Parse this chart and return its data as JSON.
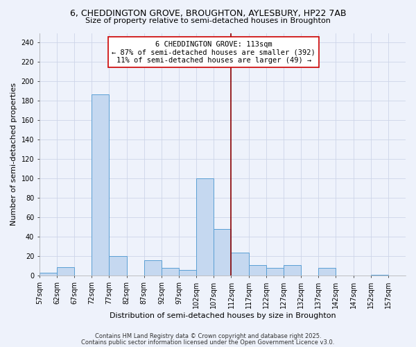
{
  "title": "6, CHEDDINGTON GROVE, BROUGHTON, AYLESBURY, HP22 7AB",
  "subtitle": "Size of property relative to semi-detached houses in Broughton",
  "xlabel": "Distribution of semi-detached houses by size in Broughton",
  "ylabel": "Number of semi-detached properties",
  "bin_edges": [
    57,
    62,
    67,
    72,
    77,
    82,
    87,
    92,
    97,
    102,
    107,
    112,
    117,
    122,
    127,
    132,
    137,
    142,
    147,
    152,
    157
  ],
  "bin_labels": [
    "57sqm",
    "62sqm",
    "67sqm",
    "72sqm",
    "77sqm",
    "82sqm",
    "87sqm",
    "92sqm",
    "97sqm",
    "102sqm",
    "107sqm",
    "112sqm",
    "117sqm",
    "122sqm",
    "127sqm",
    "132sqm",
    "137sqm",
    "142sqm",
    "147sqm",
    "152sqm",
    "157sqm"
  ],
  "values": [
    3,
    9,
    0,
    187,
    20,
    0,
    16,
    8,
    6,
    100,
    48,
    24,
    11,
    8,
    11,
    0,
    8,
    0,
    0,
    1
  ],
  "bar_color": "#c5d8f0",
  "bar_edge_color": "#5a9fd4",
  "background_color": "#eef2fb",
  "grid_color": "#cdd5e8",
  "property_line_x": 112,
  "property_line_color": "#8b0000",
  "annotation_text": "6 CHEDDINGTON GROVE: 113sqm\n← 87% of semi-detached houses are smaller (392)\n11% of semi-detached houses are larger (49) →",
  "annotation_box_color": "#ffffff",
  "annotation_box_edge_color": "#cc0000",
  "ylim": [
    0,
    250
  ],
  "yticks": [
    0,
    20,
    40,
    60,
    80,
    100,
    120,
    140,
    160,
    180,
    200,
    220,
    240
  ],
  "footnote1": "Contains HM Land Registry data © Crown copyright and database right 2025.",
  "footnote2": "Contains public sector information licensed under the Open Government Licence v3.0.",
  "title_fontsize": 9,
  "subtitle_fontsize": 8,
  "axis_label_fontsize": 8,
  "tick_fontsize": 7,
  "annotation_fontsize": 7.5,
  "footnote_fontsize": 6
}
